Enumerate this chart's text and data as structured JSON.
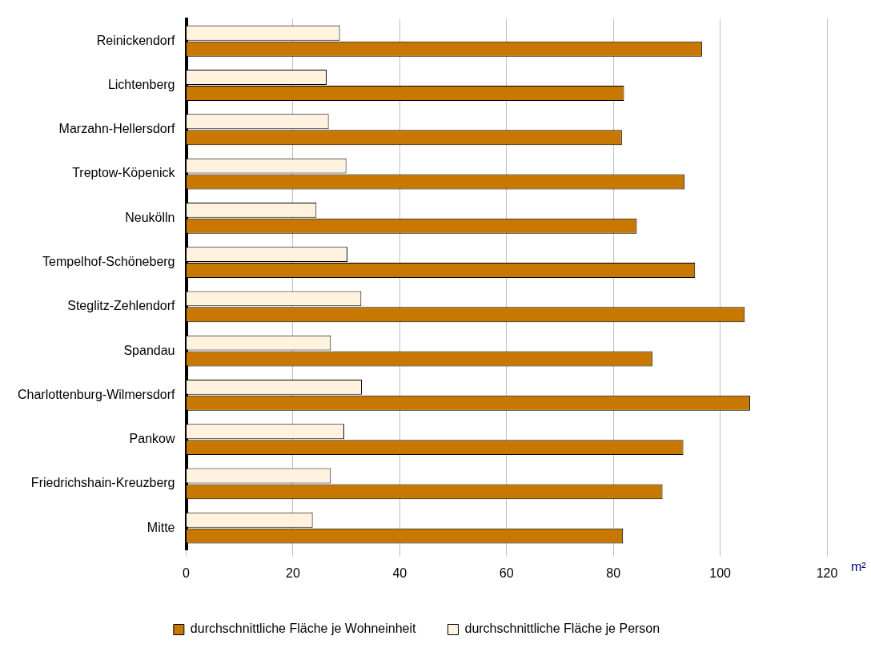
{
  "chart_data": {
    "type": "bar",
    "orientation": "horizontal",
    "xlabel": "m²",
    "categories": [
      "Reinickendorf",
      "Lichtenberg",
      "Marzahn-Hellersdorf",
      "Treptow-Köpenick",
      "Neukölln",
      "Tempelhof-Schöneberg",
      "Steglitz-Zehlendorf",
      "Spandau",
      "Charlottenburg-Wilmersdorf",
      "Pankow",
      "Friedrichshain-Kreuzberg",
      "Mitte"
    ],
    "series": [
      {
        "name": "durchschnittliche Fläche je Wohneinheit",
        "color": "#c87800",
        "values": [
          96.6,
          82.0,
          81.6,
          93.3,
          84.4,
          95.3,
          104.6,
          87.3,
          105.6,
          93.1,
          89.2,
          81.8
        ]
      },
      {
        "name": "durchschnittliche Fläche je Person",
        "color": "#fff3e0",
        "values": [
          28.8,
          26.3,
          26.7,
          30.0,
          24.4,
          30.2,
          32.8,
          27.1,
          32.9,
          29.6,
          27.1,
          23.7
        ]
      }
    ],
    "xlim": [
      0,
      120
    ],
    "xticks": [
      0,
      20,
      40,
      60,
      80,
      100,
      120
    ],
    "grid": "x",
    "legend": "bottom"
  }
}
